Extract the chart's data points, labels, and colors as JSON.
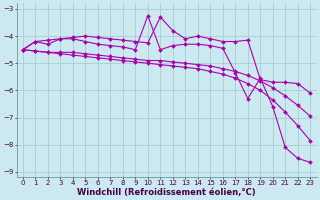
{
  "xlabel": "Windchill (Refroidissement éolien,°C)",
  "bg_color": "#cce8f0",
  "line_color": "#aa00aa",
  "grid_color": "#99cccc",
  "xlim": [
    -0.5,
    23.5
  ],
  "ylim": [
    -9.2,
    -2.8
  ],
  "yticks": [
    -9,
    -8,
    -7,
    -6,
    -5,
    -4,
    -3
  ],
  "xticks": [
    0,
    1,
    2,
    3,
    4,
    5,
    6,
    7,
    8,
    9,
    10,
    11,
    12,
    13,
    14,
    15,
    16,
    17,
    18,
    19,
    20,
    21,
    22,
    23
  ],
  "lines": [
    [
      -4.5,
      -4.2,
      -4.15,
      -4.1,
      -4.05,
      -4.0,
      -4.05,
      -4.1,
      -4.15,
      -4.2,
      -4.25,
      -3.3,
      -3.8,
      -4.1,
      -4.0,
      -4.1,
      -4.2,
      -4.2,
      -4.15,
      -5.6,
      -5.7,
      -5.7,
      -5.75,
      -6.1
    ],
    [
      -4.5,
      -4.2,
      -4.3,
      -4.1,
      -4.1,
      -4.2,
      -4.3,
      -4.35,
      -4.4,
      -4.5,
      -3.25,
      -4.5,
      -4.35,
      -4.3,
      -4.3,
      -4.35,
      -4.45,
      -5.35,
      -6.3,
      -5.55,
      -6.6,
      -8.1,
      -8.5,
      -8.65
    ],
    [
      -4.5,
      -4.55,
      -4.6,
      -4.6,
      -4.6,
      -4.65,
      -4.7,
      -4.75,
      -4.8,
      -4.85,
      -4.9,
      -4.9,
      -4.95,
      -5.0,
      -5.05,
      -5.1,
      -5.2,
      -5.3,
      -5.45,
      -5.65,
      -5.9,
      -6.2,
      -6.55,
      -6.95
    ],
    [
      -4.5,
      -4.55,
      -4.6,
      -4.65,
      -4.7,
      -4.75,
      -4.8,
      -4.85,
      -4.9,
      -4.95,
      -5.0,
      -5.05,
      -5.1,
      -5.15,
      -5.2,
      -5.3,
      -5.4,
      -5.55,
      -5.75,
      -6.0,
      -6.35,
      -6.8,
      -7.3,
      -7.85
    ]
  ],
  "marker": "D",
  "markersize": 2.0,
  "linewidth": 0.8,
  "tick_fontsize": 5.0,
  "xlabel_fontsize": 6.0
}
